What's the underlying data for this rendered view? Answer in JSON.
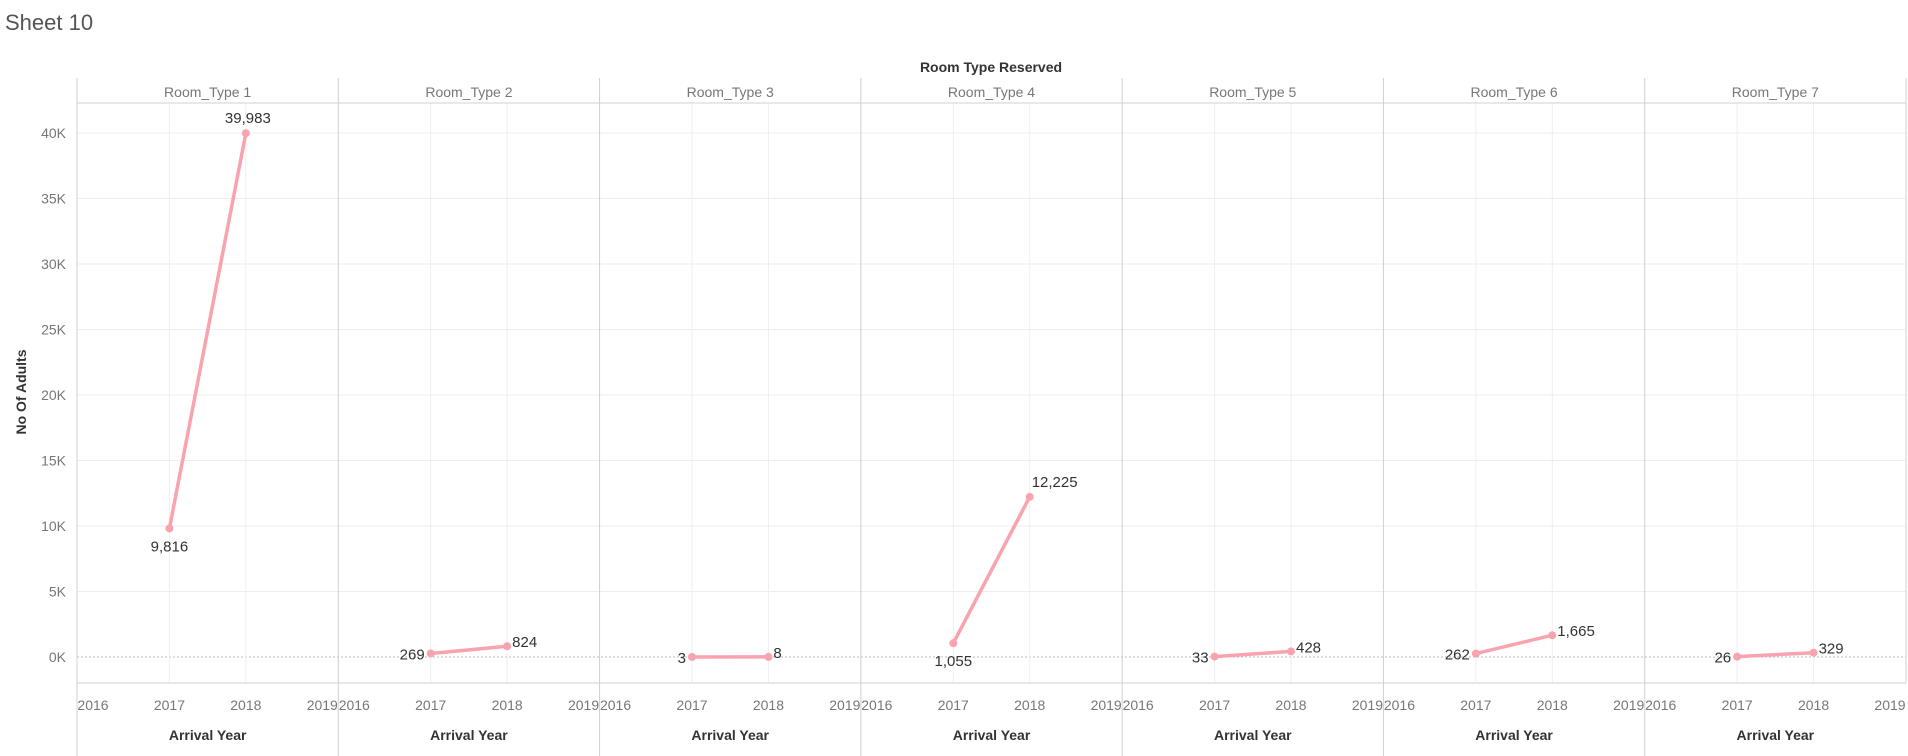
{
  "sheet": {
    "title": "Sheet 10"
  },
  "colors": {
    "line": "#F9A3AE",
    "grid": "#EEEEEE",
    "divider": "#D0D0D0",
    "zero": "#BBBBBB"
  },
  "chart_data": {
    "type": "line",
    "title": "Room Type Reserved",
    "xlabel": "Arrival Year",
    "ylabel": "No Of Adults",
    "x_ticks": [
      "2016",
      "2017",
      "2018",
      "2019"
    ],
    "xlim": [
      2016,
      2019
    ],
    "y_ticks": [
      "0K",
      "5K",
      "10K",
      "15K",
      "20K",
      "25K",
      "30K",
      "35K",
      "40K"
    ],
    "ylim": [
      0,
      40000
    ],
    "grid": true,
    "panels": [
      {
        "name": "Room_Type 1",
        "x": [
          2017,
          2018
        ],
        "values": [
          9816,
          39983
        ],
        "labels": [
          "9,816",
          "39,983"
        ]
      },
      {
        "name": "Room_Type 2",
        "x": [
          2017,
          2018
        ],
        "values": [
          269,
          824
        ],
        "labels": [
          "269",
          "824"
        ]
      },
      {
        "name": "Room_Type 3",
        "x": [
          2017,
          2018
        ],
        "values": [
          3,
          8
        ],
        "labels": [
          "3",
          "8"
        ]
      },
      {
        "name": "Room_Type 4",
        "x": [
          2017,
          2018
        ],
        "values": [
          1055,
          12225
        ],
        "labels": [
          "1,055",
          "12,225"
        ]
      },
      {
        "name": "Room_Type 5",
        "x": [
          2017,
          2018
        ],
        "values": [
          33,
          428
        ],
        "labels": [
          "33",
          "428"
        ]
      },
      {
        "name": "Room_Type 6",
        "x": [
          2017,
          2018
        ],
        "values": [
          262,
          1665
        ],
        "labels": [
          "262",
          "1,665"
        ]
      },
      {
        "name": "Room_Type 7",
        "x": [
          2017,
          2018
        ],
        "values": [
          26,
          329
        ],
        "labels": [
          "26",
          "329"
        ]
      }
    ]
  }
}
